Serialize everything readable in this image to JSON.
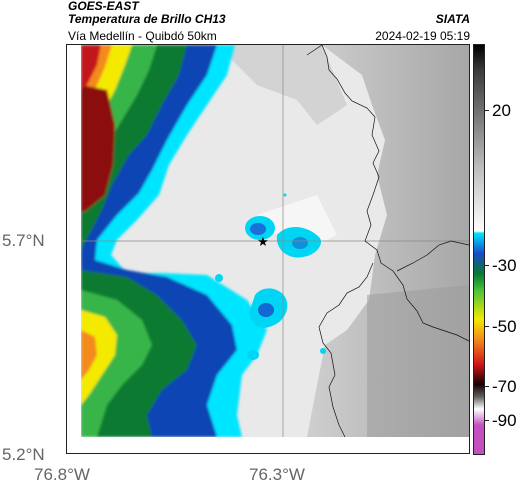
{
  "header": {
    "satellite": "GOES-EAST",
    "product": "Temperatura de Brillo CH13",
    "route": "Vía Medellín - Quibdó 50km",
    "organization": "SIATA",
    "datetime": "2024-02-19 05:19"
  },
  "map": {
    "marker_symbol": "★",
    "x_ticks": [
      "76.8°W",
      "76.3°W"
    ],
    "y_ticks": [
      "5.7°N",
      "5.2°N"
    ]
  },
  "colorbar": {
    "ticks": [
      "20",
      "-30",
      "-50",
      "-70",
      "-90"
    ]
  }
}
